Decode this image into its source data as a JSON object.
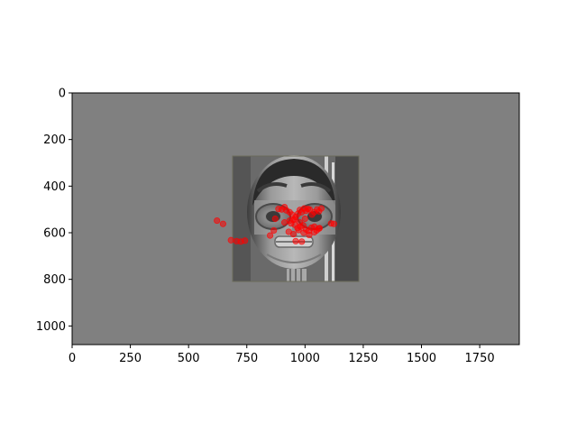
{
  "chart_data": {
    "type": "scatter",
    "title": "",
    "xlabel": "",
    "ylabel": "",
    "xlim": [
      0,
      1920
    ],
    "ylim": [
      1080,
      0
    ],
    "y_inverted": true,
    "grid": false,
    "xticks": [
      0,
      250,
      500,
      750,
      1000,
      1250,
      1500,
      1750
    ],
    "yticks": [
      0,
      200,
      400,
      600,
      800,
      1000
    ],
    "background_color": "#808080",
    "point_color": "#ff0000",
    "image": {
      "subject": "robot-face",
      "extent_x": [
        690,
        1235
      ],
      "extent_y": [
        270,
        810
      ]
    },
    "series": [
      {
        "x": [
          622,
          648,
          682,
          706,
          724,
          742,
          850,
          866,
          872,
          886,
          900,
          912,
          920,
          934,
          944,
          950,
          960,
          970,
          978,
          986,
          996,
          1004,
          1012,
          1020,
          1030,
          1040,
          1052,
          1060,
          1070,
          1112,
          1124,
          940,
          956,
          968,
          980,
          992,
          1004,
          1016,
          1028,
          1040,
          1050,
          1060,
          930,
          950,
          972,
          994,
          1018,
          1040,
          1062,
          912,
          934,
          956,
          978,
          1000,
          960,
          986
        ],
        "y": [
          548,
          562,
          632,
          636,
          638,
          634,
          612,
          590,
          540,
          498,
          500,
          490,
          504,
          512,
          522,
          544,
          532,
          518,
          502,
          512,
          496,
          506,
          498,
          500,
          522,
          512,
          500,
          508,
          496,
          560,
          562,
          560,
          566,
          580,
          574,
          568,
          586,
          592,
          578,
          574,
          590,
          582,
          596,
          606,
          588,
          600,
          610,
          598,
          580,
          556,
          548,
          542,
          556,
          540,
          636,
          638
        ]
      }
    ]
  }
}
